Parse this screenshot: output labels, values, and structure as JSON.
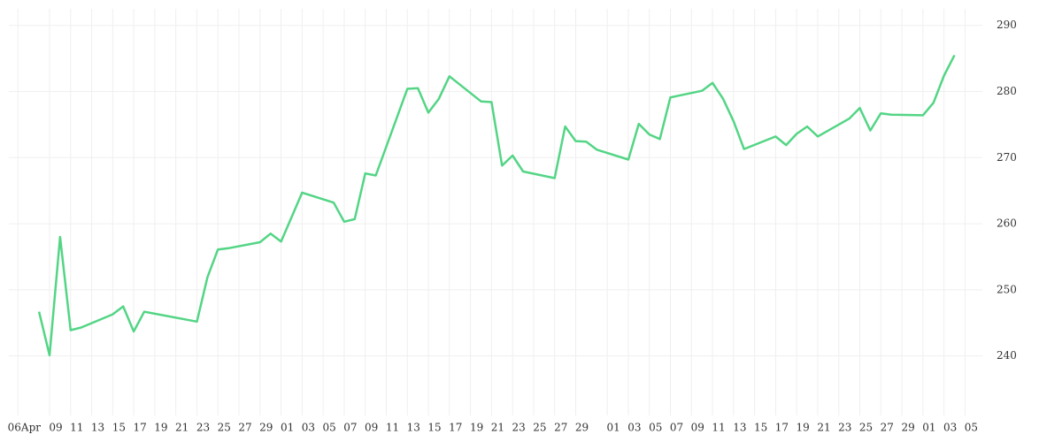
{
  "chart_data": {
    "type": "line",
    "x": [
      "Apr 08",
      "Apr 09",
      "Apr 10",
      "Apr 11",
      "Apr 12",
      "Apr 15",
      "Apr 16",
      "Apr 17",
      "Apr 18",
      "Apr 23",
      "Apr 24",
      "Apr 25",
      "Apr 26",
      "Apr 29",
      "Apr 30",
      "May 01",
      "May 03",
      "May 06",
      "May 07",
      "May 08",
      "May 09",
      "May 10",
      "May 13",
      "May 14",
      "May 15",
      "May 16",
      "May 17",
      "May 20",
      "May 21",
      "May 22",
      "May 23",
      "May 24",
      "May 27",
      "May 28",
      "May 29",
      "May 30",
      "May 31",
      "Jun 03",
      "Jun 04",
      "Jun 05",
      "Jun 06",
      "Jun 07",
      "Jun 10",
      "Jun 11",
      "Jun 12",
      "Jun 13",
      "Jun 14",
      "Jun 17",
      "Jun 18",
      "Jun 19",
      "Jun 20",
      "Jun 21",
      "Jun 24",
      "Jun 25",
      "Jun 26",
      "Jun 27",
      "Jun 28",
      "Jul 01",
      "Jul 02",
      "Jul 03",
      "Jul 04"
    ],
    "series": [
      {
        "color": "#53d585",
        "values": [
          246.7,
          240.1,
          258.0,
          243.9,
          244.3,
          246.3,
          247.5,
          243.7,
          246.7,
          245.2,
          251.9,
          256.1,
          256.3,
          257.2,
          258.5,
          257.3,
          264.7,
          263.2,
          260.3,
          260.7,
          267.6,
          267.3,
          280.4,
          280.5,
          276.8,
          278.9,
          282.3,
          278.5,
          278.4,
          268.8,
          270.3,
          267.9,
          266.9,
          274.7,
          272.5,
          272.4,
          271.2,
          269.7,
          275.1,
          273.5,
          272.8,
          279.1,
          280.1,
          281.3,
          278.9,
          275.5,
          271.3,
          273.2,
          271.9,
          273.6,
          274.7,
          273.2,
          275.9,
          277.5,
          274.1,
          276.7,
          276.5,
          276.4,
          278.3,
          282.4,
          285.5
        ]
      }
    ],
    "ylim": [
      231,
      292.5
    ],
    "yticks": [
      240,
      250,
      260,
      270,
      280,
      290
    ],
    "xticks": [
      {
        "value": "Apr 06",
        "label": "06Apr"
      },
      {
        "value": "Apr 09",
        "label": "09"
      },
      {
        "value": "Apr 11",
        "label": "11"
      },
      {
        "value": "Apr 13",
        "label": "13"
      },
      {
        "value": "Apr 15",
        "label": "15"
      },
      {
        "value": "Apr 17",
        "label": "17"
      },
      {
        "value": "Apr 19",
        "label": "19"
      },
      {
        "value": "Apr 21",
        "label": "21"
      },
      {
        "value": "Apr 23",
        "label": "23"
      },
      {
        "value": "Apr 25",
        "label": "25"
      },
      {
        "value": "Apr 27",
        "label": "27"
      },
      {
        "value": "Apr 29",
        "label": "29"
      },
      {
        "value": "May 01",
        "label": "01"
      },
      {
        "value": "May 03",
        "label": "03"
      },
      {
        "value": "May 05",
        "label": "05"
      },
      {
        "value": "May 07",
        "label": "07"
      },
      {
        "value": "May 09",
        "label": "09"
      },
      {
        "value": "May 11",
        "label": "11"
      },
      {
        "value": "May 13",
        "label": "13"
      },
      {
        "value": "May 15",
        "label": "15"
      },
      {
        "value": "May 17",
        "label": "17"
      },
      {
        "value": "May 19",
        "label": "19"
      },
      {
        "value": "May 21",
        "label": "21"
      },
      {
        "value": "May 23",
        "label": "23"
      },
      {
        "value": "May 25",
        "label": "25"
      },
      {
        "value": "May 27",
        "label": "27"
      },
      {
        "value": "May 29",
        "label": "29"
      },
      {
        "value": "Jun 01",
        "label": "01"
      },
      {
        "value": "Jun 03",
        "label": "03"
      },
      {
        "value": "Jun 05",
        "label": "05"
      },
      {
        "value": "Jun 07",
        "label": "07"
      },
      {
        "value": "Jun 09",
        "label": "09"
      },
      {
        "value": "Jun 11",
        "label": "11"
      },
      {
        "value": "Jun 13",
        "label": "13"
      },
      {
        "value": "Jun 15",
        "label": "15"
      },
      {
        "value": "Jun 17",
        "label": "17"
      },
      {
        "value": "Jun 19",
        "label": "19"
      },
      {
        "value": "Jun 21",
        "label": "21"
      },
      {
        "value": "Jun 23",
        "label": "23"
      },
      {
        "value": "Jun 25",
        "label": "25"
      },
      {
        "value": "Jun 27",
        "label": "27"
      },
      {
        "value": "Jun 29",
        "label": "29"
      },
      {
        "value": "Jul 01",
        "label": "01"
      },
      {
        "value": "Jul 03",
        "label": "03"
      },
      {
        "value": "Jul 05",
        "label": "05"
      }
    ],
    "grid": true
  }
}
